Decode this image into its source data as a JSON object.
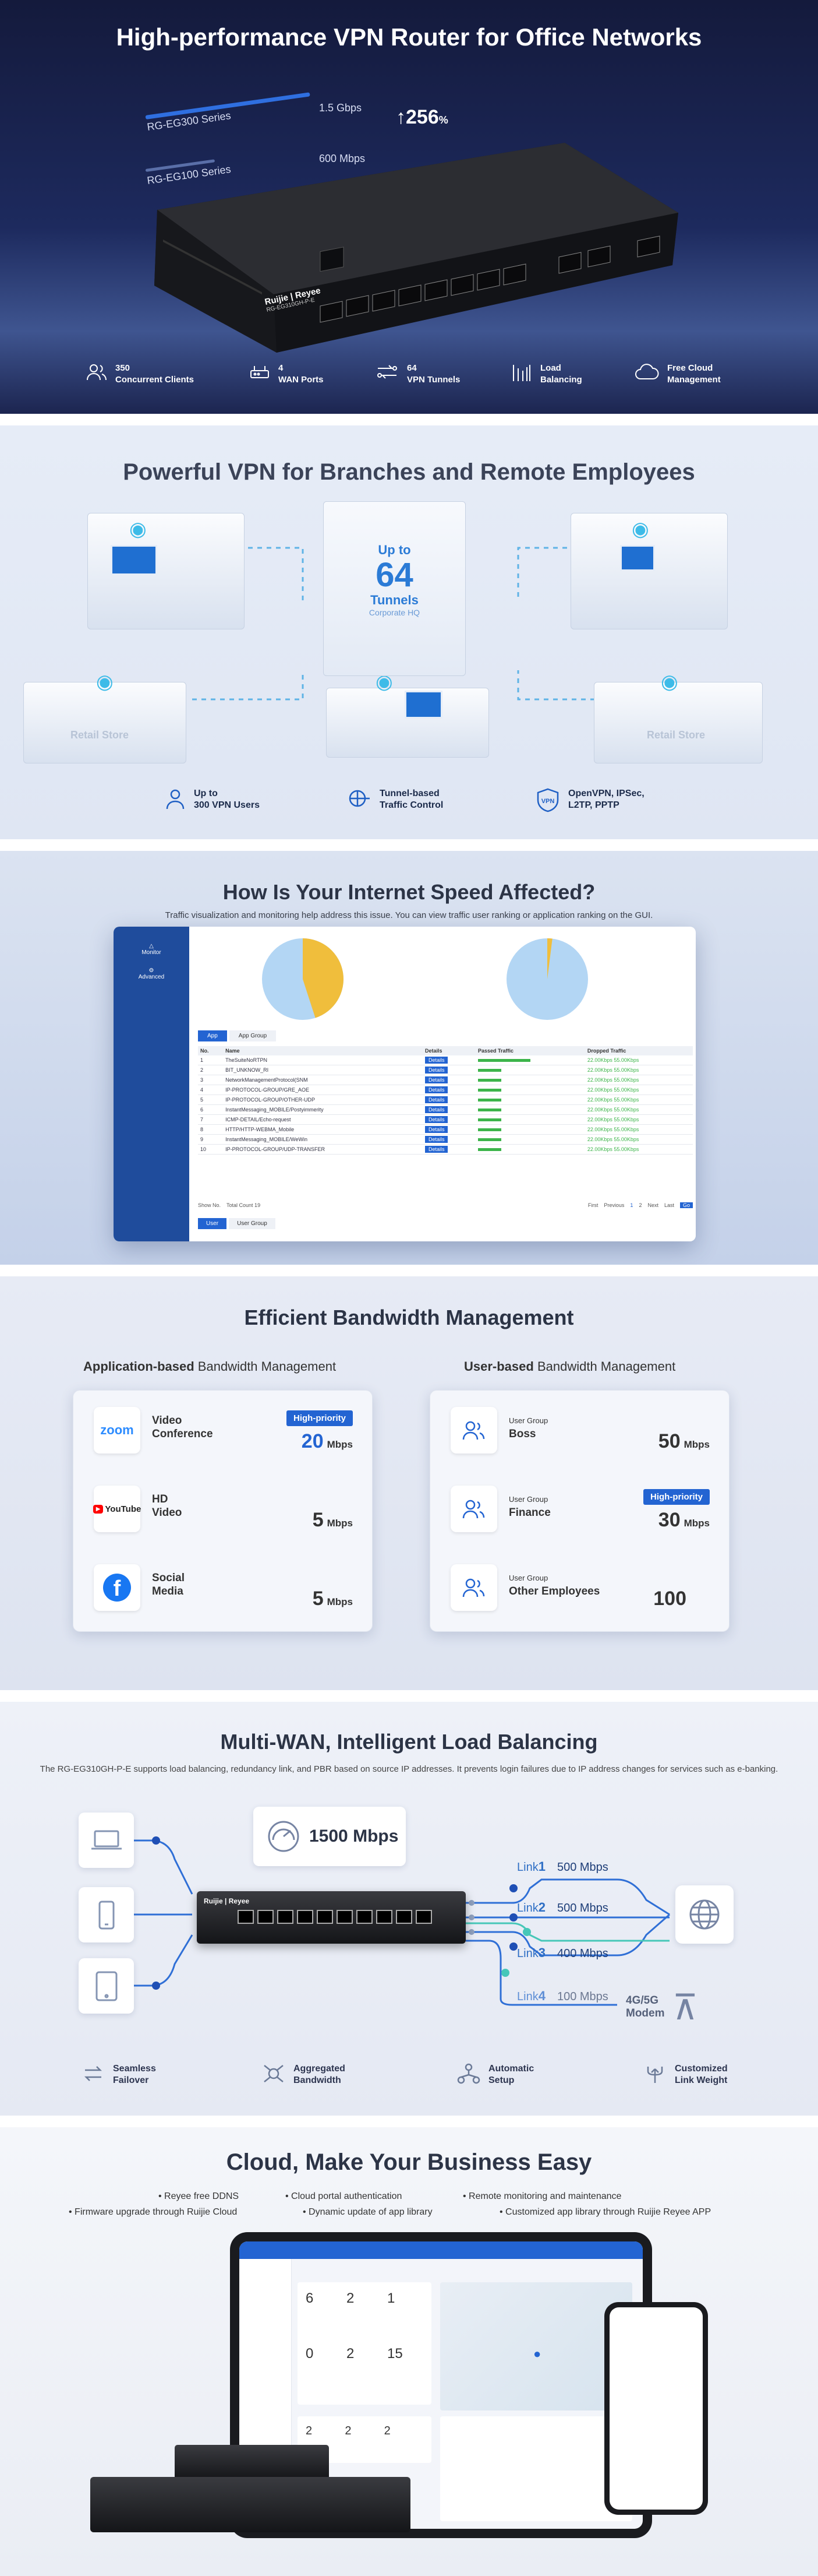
{
  "s1": {
    "title": "High-performance VPN Router for Office Networks",
    "eg300": "RG-EG300 Series",
    "eg300_speed": "1.5 Gbps",
    "eg100": "RG-EG100 Series",
    "eg100_speed": "600 Mbps",
    "increase": "256",
    "increase_unit": "%",
    "brand": "Ruijie",
    "subbrand": "Reyee",
    "model": "RG-EG310GH-P-E",
    "features": [
      {
        "icon": "users-icon",
        "line1": "350",
        "line2": "Concurrent Clients"
      },
      {
        "icon": "router-icon",
        "line1": "4",
        "line2": "WAN Ports"
      },
      {
        "icon": "tunnel-icon",
        "line1": "64",
        "line2": "VPN Tunnels"
      },
      {
        "icon": "balance-icon",
        "line1": "Load",
        "line2": "Balancing"
      },
      {
        "icon": "cloud-icon",
        "line1": "Free Cloud",
        "line2": "Management"
      }
    ]
  },
  "s2": {
    "title": "Powerful VPN for Branches and Remote Employees",
    "up_to": "Up to",
    "count": "64",
    "tunnels": "Tunnels",
    "hq": "Corporate HQ",
    "retail1": "Retail Store",
    "retail2": "Retail Store",
    "features": [
      {
        "icon": "user-icon",
        "line1": "Up to",
        "line2": "300 VPN Users"
      },
      {
        "icon": "traffic-icon",
        "line1": "Tunnel-based",
        "line2": "Traffic Control"
      },
      {
        "icon": "vpn-icon",
        "line1": "OpenVPN, IPSec,",
        "line2": "L2TP, PPTP"
      }
    ]
  },
  "s3": {
    "title": "How Is Your Internet Speed Affected?",
    "subtitle": "Traffic visualization and monitoring help address this issue. You can view traffic user ranking or application ranking on the GUI.",
    "tabs": [
      "App",
      "App Group"
    ],
    "sidebar": [
      "Monitor",
      "Advanced"
    ],
    "columns": [
      "No.",
      "Name",
      "Details",
      "Passed Traffic",
      "Dropped Traffic"
    ],
    "rows": [
      {
        "no": "1",
        "name": "TheSuiteNoRTPN",
        "details": "Details",
        "dropped": "22.00Kbps  55.00Kbps"
      },
      {
        "no": "2",
        "name": "BIT_UNKNOW_RI",
        "details": "Details",
        "dropped": "22.00Kbps  55.00Kbps"
      },
      {
        "no": "3",
        "name": "NetworkManagementProtocol(SNM",
        "details": "Details",
        "dropped": "22.00Kbps  55.00Kbps"
      },
      {
        "no": "4",
        "name": "IP-PROTOCOL-GROUP/GRE_AOE",
        "details": "Details",
        "dropped": "22.00Kbps  55.00Kbps"
      },
      {
        "no": "5",
        "name": "IP-PROTOCOL-GROUP/OTHER-UDP",
        "details": "Details",
        "dropped": "22.00Kbps  55.00Kbps"
      },
      {
        "no": "6",
        "name": "InstantMessaging_MOBILE/Postyimmerity",
        "details": "Details",
        "dropped": "22.00Kbps  55.00Kbps"
      },
      {
        "no": "7",
        "name": "ICMP-DETAIL/Echo-request",
        "details": "Details",
        "dropped": "22.00Kbps  55.00Kbps"
      },
      {
        "no": "8",
        "name": "HTTP/HTTP-WEBMA_Mobile",
        "details": "Details",
        "dropped": "22.00Kbps  55.00Kbps"
      },
      {
        "no": "9",
        "name": "InstantMessaging_MOBILE/WeWin",
        "details": "Details",
        "dropped": "22.00Kbps  55.00Kbps"
      },
      {
        "no": "10",
        "name": "IP-PROTOCOL-GROUP/UDP-TRANSFER",
        "details": "Details",
        "dropped": "22.00Kbps  55.00Kbps"
      }
    ],
    "show_no": "Show No.",
    "total": "Total Count 19",
    "pager": [
      "First",
      "Previous",
      "1",
      "2",
      "Next",
      "Last"
    ],
    "go": "Go",
    "bottom_tabs": [
      "User",
      "User Group"
    ],
    "pie1": {
      "share": 0.45,
      "colors": [
        "#f0be3c",
        "#b3d6f4"
      ]
    },
    "pie2": {
      "share": 0.02,
      "colors": [
        "#f0be3c",
        "#b3d6f4"
      ]
    }
  },
  "s4": {
    "title": "Efficient Bandwidth Management",
    "left_head_bold": "Application-based",
    "left_head_rest": " Bandwidth Management",
    "right_head_bold": "User-based",
    "right_head_rest": " Bandwidth Management",
    "unit": "Mbps",
    "high_priority": "High-priority",
    "apps": [
      {
        "icon": "zoom-icon",
        "logo": "zoom",
        "label1": "Video",
        "label2": "Conference",
        "value": "20",
        "priority": true
      },
      {
        "icon": "youtube-icon",
        "logo": "YouTube",
        "label1": "HD",
        "label2": "Video",
        "value": "5",
        "priority": false
      },
      {
        "icon": "facebook-icon",
        "logo": "f",
        "label1": "Social",
        "label2": "Media",
        "value": "5",
        "priority": false
      }
    ],
    "users": [
      {
        "icon": "user-group-icon",
        "label1": "User Group",
        "label2": "Boss",
        "value": "50",
        "priority": false
      },
      {
        "icon": "user-group-icon",
        "label1": "User Group",
        "label2": "Finance",
        "value": "30",
        "priority": true
      },
      {
        "icon": "user-group-icon",
        "label1": "User Group",
        "label2": "Other Employees",
        "value": "100",
        "priority": false
      }
    ]
  },
  "s5": {
    "title": "Multi-WAN, Intelligent Load Balancing",
    "subtitle": "The RG-EG310GH-P-E supports load balancing, redundancy link, and PBR based on source IP addresses. It prevents login failures due to IP address changes for services such as e-banking.",
    "speed": "1500 Mbps",
    "links": [
      {
        "name": "Link",
        "num": "1",
        "rate": "500 Mbps"
      },
      {
        "name": "Link",
        "num": "2",
        "rate": "500 Mbps"
      },
      {
        "name": "Link",
        "num": "3",
        "rate": "400 Mbps"
      },
      {
        "name": "Link",
        "num": "4",
        "rate": "100 Mbps"
      }
    ],
    "modem": "4G/5G",
    "modem2": "Modem",
    "features": [
      {
        "icon": "failover-icon",
        "line1": "Seamless",
        "line2": "Failover"
      },
      {
        "icon": "aggregate-icon",
        "line1": "Aggregated",
        "line2": "Bandwidth"
      },
      {
        "icon": "setup-icon",
        "line1": "Automatic",
        "line2": "Setup"
      },
      {
        "icon": "link-weight-icon",
        "line1": "Customized",
        "line2": "Link Weight"
      }
    ]
  },
  "s6": {
    "title": "Cloud, Make Your Business Easy",
    "bullets_row1": [
      "Reyee free DDNS",
      "Cloud portal authentication",
      "Remote monitoring and maintenance"
    ],
    "bullets_row2": [
      "Firmware upgrade through Ruijie Cloud",
      "Dynamic update of app library",
      "Customized app library through Ruijie Reyee APP"
    ],
    "dash_nums": [
      "6",
      "2",
      "1",
      "0",
      "2",
      "15",
      "2",
      "2",
      "2"
    ]
  }
}
